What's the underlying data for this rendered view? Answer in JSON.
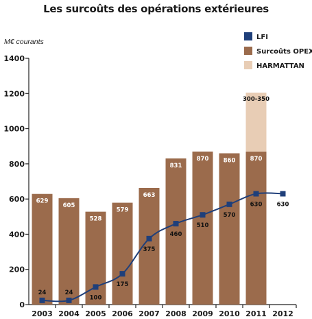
{
  "chart_data": {
    "type": "bar",
    "title": "Les surcoûts des opérations extérieures",
    "ylabel": "M€ courants",
    "ylim": [
      0,
      1400
    ],
    "yticks": [
      0,
      200,
      400,
      600,
      800,
      1000,
      1200,
      1400
    ],
    "grid": false,
    "legend_position": "top-right",
    "categories": [
      "2003",
      "2004",
      "2005",
      "2006",
      "2007",
      "2008",
      "2009",
      "2010",
      "2011",
      "2012"
    ],
    "series": [
      {
        "name": "Surcoûts OPEX",
        "type": "bar",
        "color": "#9b6b4c",
        "values": [
          629,
          605,
          528,
          579,
          663,
          831,
          870,
          860,
          870,
          null
        ],
        "labels": [
          "629",
          "605",
          "528",
          "579",
          "663",
          "831",
          "870",
          "860",
          "870",
          ""
        ]
      },
      {
        "name": "HARMATTAN",
        "type": "bar-stacked",
        "color": "#e8cdb5",
        "values": [
          null,
          null,
          null,
          null,
          null,
          null,
          null,
          null,
          335,
          null
        ],
        "labels": [
          "",
          "",
          "",
          "",
          "",
          "",
          "",
          "",
          "300-350",
          ""
        ]
      },
      {
        "name": "LFI",
        "type": "line",
        "color": "#1f3f7a",
        "values": [
          24,
          24,
          100,
          175,
          375,
          460,
          510,
          570,
          630,
          630
        ],
        "labels": [
          "24",
          "24",
          "100",
          "175",
          "375",
          "460",
          "510",
          "570",
          "630",
          "630"
        ]
      }
    ]
  }
}
